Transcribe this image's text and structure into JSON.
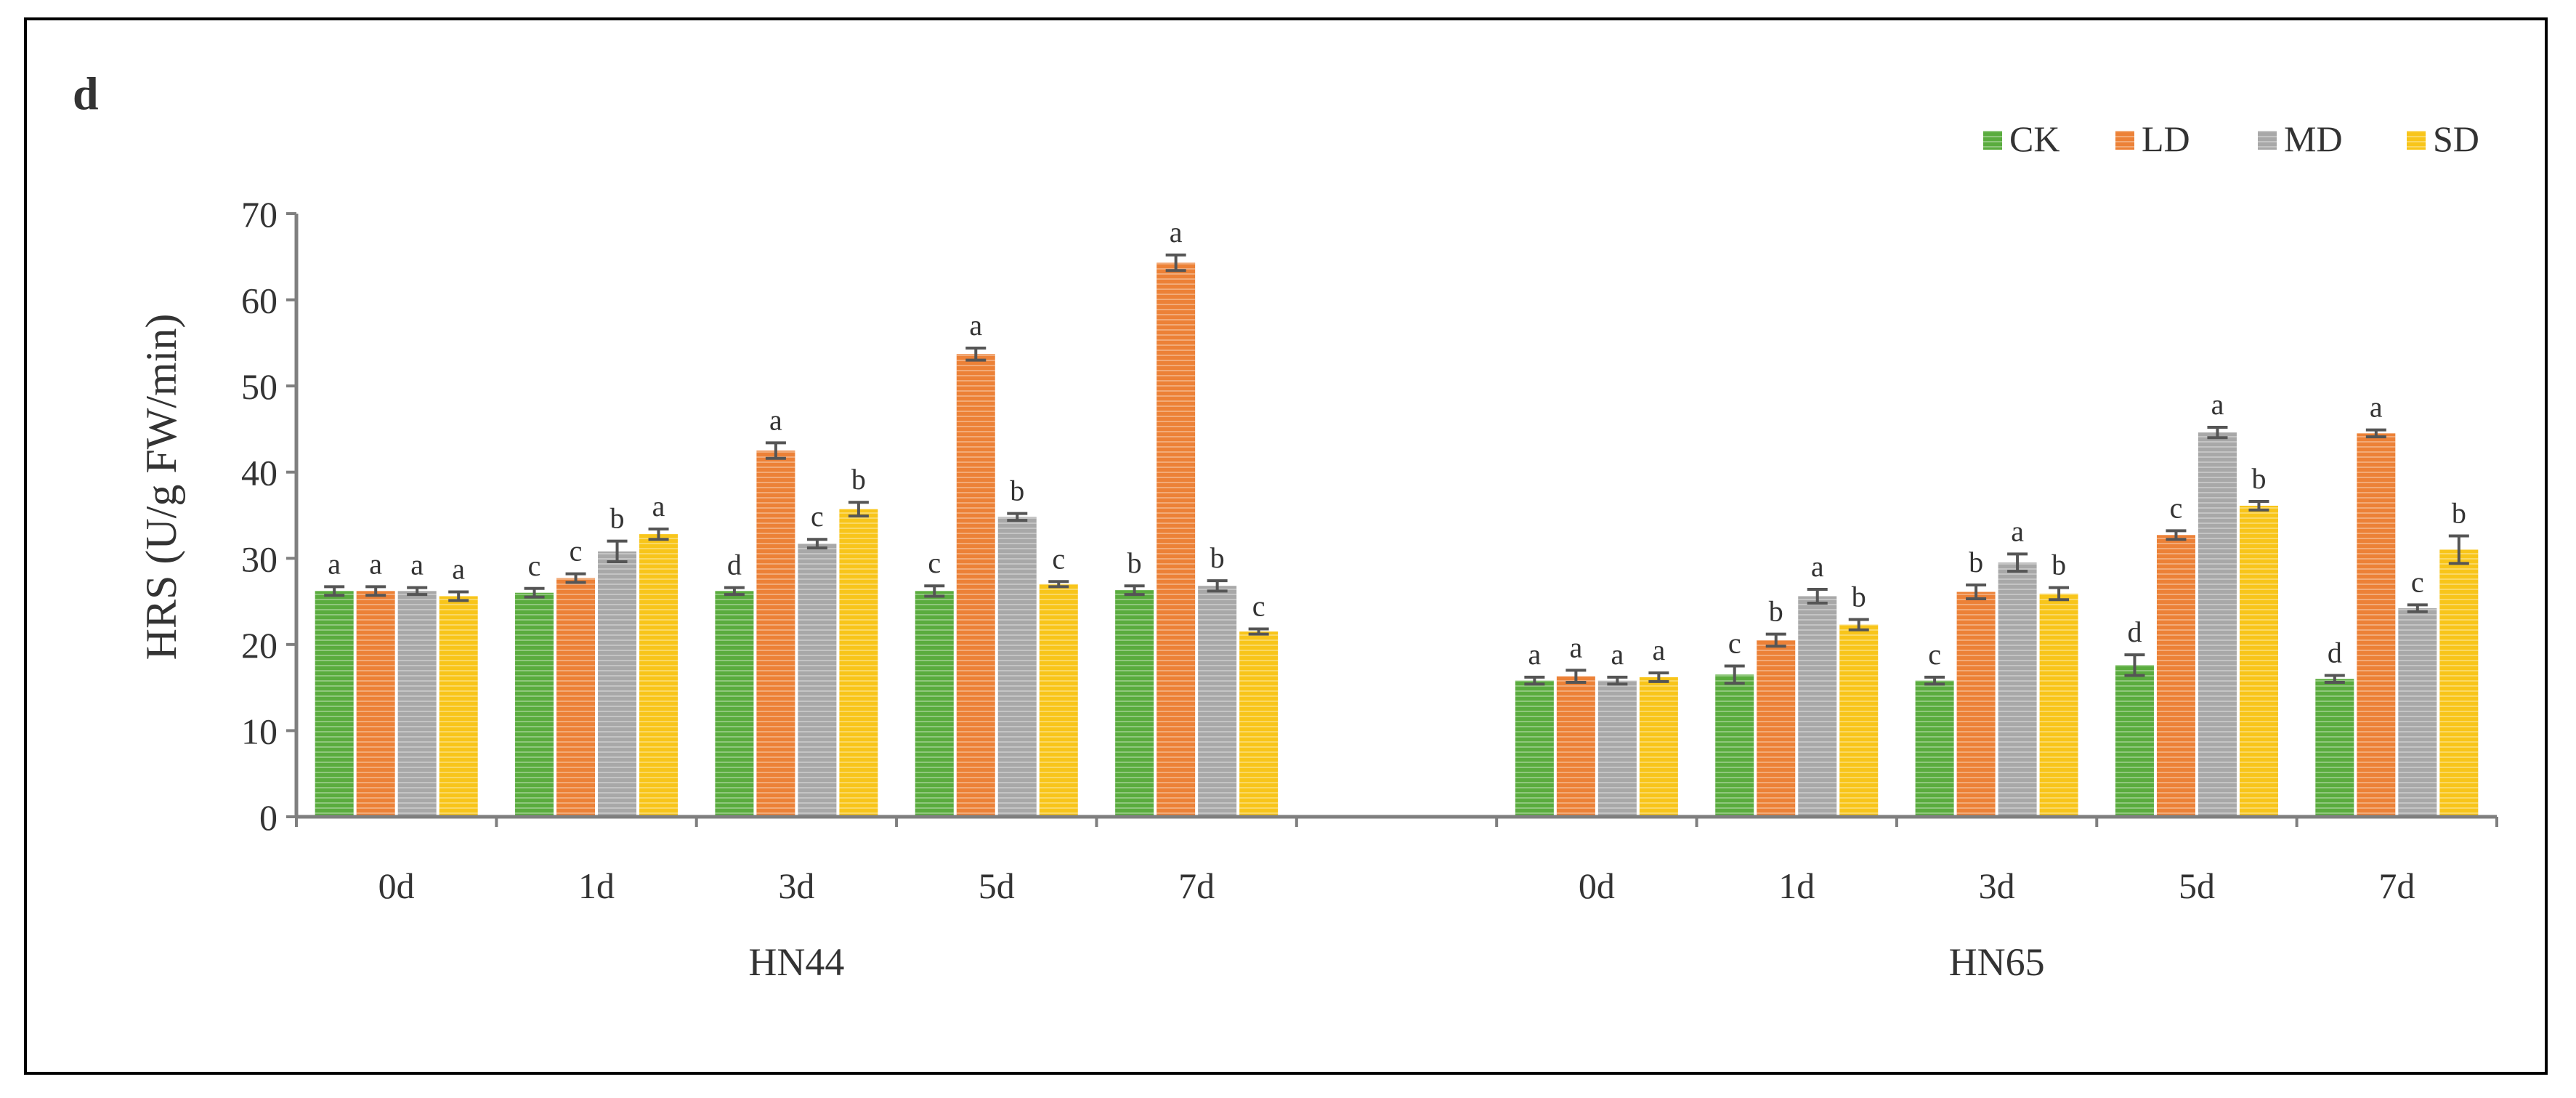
{
  "chart_data": {
    "type": "bar",
    "panel_label": "d",
    "ylabel": "HRS (U/g FW/min)",
    "ylim": [
      0,
      70
    ],
    "yticks": [
      0,
      10,
      20,
      30,
      40,
      50,
      60,
      70
    ],
    "grid": false,
    "legend_position": "top-right",
    "groups": [
      {
        "name": "HN44",
        "categories": [
          "0d",
          "1d",
          "3d",
          "5d",
          "7d"
        ]
      },
      {
        "name": "HN65",
        "categories": [
          "0d",
          "1d",
          "3d",
          "5d",
          "7d"
        ]
      }
    ],
    "series": [
      {
        "name": "CK",
        "color": "#5aac3e",
        "values": [
          [
            26.2,
            26.0,
            26.2,
            26.2,
            26.3
          ],
          [
            15.8,
            16.5,
            15.8,
            17.6,
            16.0
          ]
        ],
        "errors": [
          [
            0.5,
            0.5,
            0.4,
            0.6,
            0.5
          ],
          [
            0.4,
            1.0,
            0.4,
            1.2,
            0.4
          ]
        ],
        "letters": [
          [
            "a",
            "c",
            "d",
            "c",
            "b"
          ],
          [
            "a",
            "c",
            "c",
            "d",
            "d"
          ]
        ]
      },
      {
        "name": "LD",
        "color": "#ec8137",
        "values": [
          [
            26.2,
            27.7,
            42.5,
            53.7,
            64.3
          ],
          [
            16.3,
            20.5,
            26.1,
            32.7,
            44.5
          ]
        ],
        "errors": [
          [
            0.5,
            0.5,
            0.9,
            0.7,
            0.9
          ],
          [
            0.7,
            0.7,
            0.8,
            0.5,
            0.4
          ]
        ],
        "letters": [
          [
            "a",
            "c",
            "a",
            "a",
            "a"
          ],
          [
            "a",
            "b",
            "b",
            "c",
            "a"
          ]
        ]
      },
      {
        "name": "MD",
        "color": "#a8a8a8",
        "values": [
          [
            26.2,
            30.8,
            31.7,
            34.8,
            26.8
          ],
          [
            15.8,
            25.6,
            29.5,
            44.6,
            24.2
          ]
        ],
        "errors": [
          [
            0.4,
            1.2,
            0.5,
            0.4,
            0.6
          ],
          [
            0.4,
            0.8,
            1.0,
            0.6,
            0.4
          ]
        ],
        "letters": [
          [
            "a",
            "b",
            "c",
            "b",
            "b"
          ],
          [
            "a",
            "a",
            "a",
            "a",
            "c"
          ]
        ]
      },
      {
        "name": "SD",
        "color": "#f8c51a",
        "values": [
          [
            25.6,
            32.8,
            35.7,
            27.0,
            21.5
          ],
          [
            16.2,
            22.3,
            25.9,
            36.1,
            31.0
          ]
        ],
        "errors": [
          [
            0.5,
            0.6,
            0.8,
            0.3,
            0.3
          ],
          [
            0.5,
            0.6,
            0.7,
            0.5,
            1.6
          ]
        ],
        "letters": [
          [
            "a",
            "a",
            "b",
            "c",
            "c"
          ],
          [
            "a",
            "b",
            "b",
            "b",
            "b"
          ]
        ]
      }
    ]
  }
}
